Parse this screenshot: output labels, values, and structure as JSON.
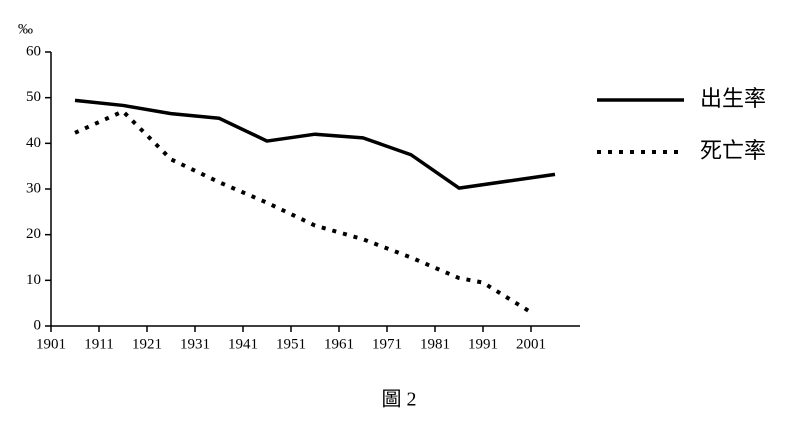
{
  "chart_data": {
    "type": "line",
    "y_unit": "‰",
    "caption": "圖 2",
    "xlim": [
      1901,
      2011
    ],
    "xticks": [
      1901,
      1911,
      1921,
      1931,
      1941,
      1951,
      1961,
      1971,
      1981,
      1991,
      2001
    ],
    "ylim": [
      0,
      60
    ],
    "yticks": [
      0,
      10,
      20,
      30,
      40,
      50,
      60
    ],
    "series": [
      {
        "name": "出生率",
        "color": "#000000",
        "style": "solid",
        "x": [
          1906,
          1916,
          1926,
          1936,
          1946,
          1956,
          1966,
          1976,
          1986,
          2006
        ],
        "values": [
          49.4,
          48.3,
          46.5,
          45.5,
          40.5,
          42,
          41.2,
          37.5,
          30.2,
          33.2
        ]
      },
      {
        "name": "死亡率",
        "color": "#000000",
        "style": "dotted",
        "x": [
          1906,
          1916,
          1926,
          1936,
          1946,
          1956,
          1966,
          1976,
          1986,
          1991,
          2001
        ],
        "values": [
          42.3,
          47,
          36.5,
          31.5,
          27,
          22,
          19,
          15,
          10.5,
          9.5,
          3
        ]
      }
    ]
  }
}
